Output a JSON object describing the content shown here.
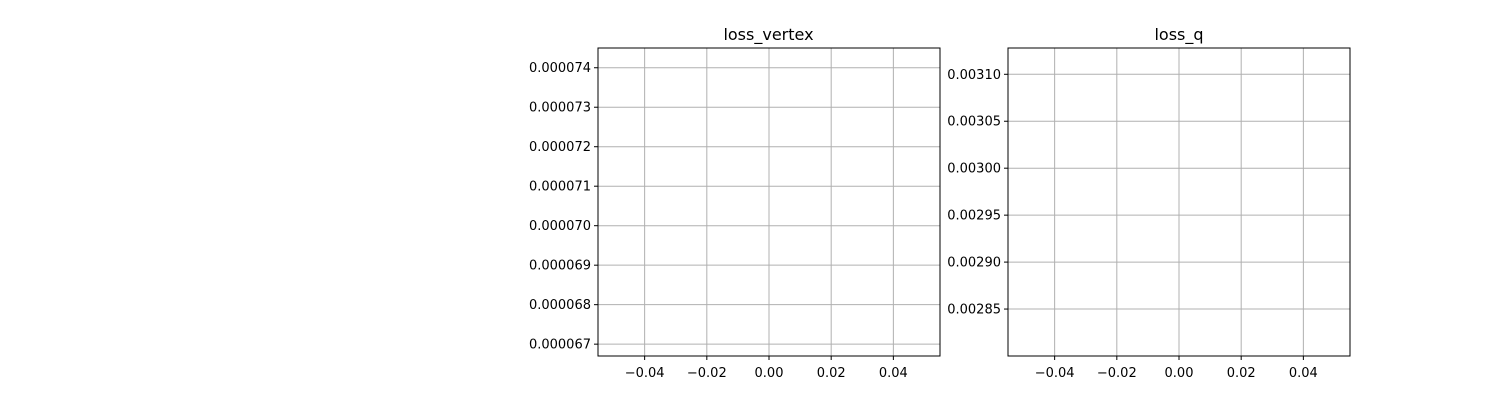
{
  "colors": {
    "grid": "#b0b0b0",
    "axis": "#000000",
    "background": "#ffffff"
  },
  "chart_data": [
    {
      "type": "line",
      "title": "loss_vertex",
      "xlabel": "",
      "ylabel": "",
      "grid": true,
      "xlim": [
        -0.055,
        0.055
      ],
      "ylim": [
        6.67e-05,
        7.45e-05
      ],
      "xticks": [
        -0.04,
        -0.02,
        0.0,
        0.02,
        0.04
      ],
      "xtick_labels": [
        "−0.04",
        "−0.02",
        "0.00",
        "0.02",
        "0.04"
      ],
      "yticks": [
        6.7e-05,
        6.8e-05,
        6.9e-05,
        7e-05,
        7.1e-05,
        7.2e-05,
        7.3e-05,
        7.4e-05
      ],
      "ytick_labels": [
        "0.000067",
        "0.000068",
        "0.000069",
        "0.000070",
        "0.000071",
        "0.000072",
        "0.000073",
        "0.000074"
      ],
      "series": []
    },
    {
      "type": "line",
      "title": "loss_q",
      "xlabel": "",
      "ylabel": "",
      "grid": true,
      "xlim": [
        -0.055,
        0.055
      ],
      "ylim": [
        0.0028,
        0.003128
      ],
      "xticks": [
        -0.04,
        -0.02,
        0.0,
        0.02,
        0.04
      ],
      "xtick_labels": [
        "−0.04",
        "−0.02",
        "0.00",
        "0.02",
        "0.04"
      ],
      "yticks": [
        0.00285,
        0.0029,
        0.00295,
        0.003,
        0.00305,
        0.0031
      ],
      "ytick_labels": [
        "0.00285",
        "0.00290",
        "0.00295",
        "0.00300",
        "0.00305",
        "0.00310"
      ],
      "series": []
    }
  ]
}
